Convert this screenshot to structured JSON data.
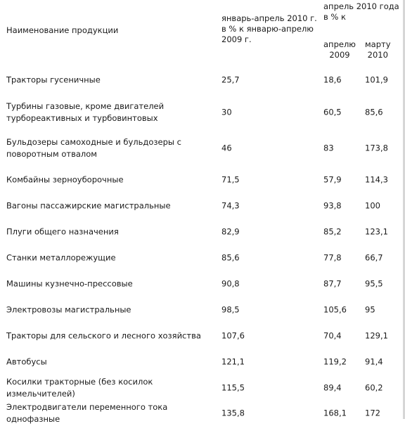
{
  "header": {
    "col_name": "Наименование продукции",
    "col_jan_apr": [
      "январь-апрель 2010 г.",
      "в % к январю-апрелю",
      "2009 г."
    ],
    "col_apr_group": [
      "апрель 2010 года",
      "в % к"
    ],
    "col_apr2009": [
      "апрелю",
      "2009"
    ],
    "col_mar2010": [
      "марту",
      "2010"
    ]
  },
  "rows": [
    {
      "name": [
        "Тракторы гусеничные"
      ],
      "v1": "25,7",
      "v2": "18,6",
      "v3": "101,9"
    },
    {
      "name": [
        "Турбины газовые, кроме двигателей",
        "турбореактивных и турбовинтовых"
      ],
      "v1": "30",
      "v2": "60,5",
      "v3": "85,6"
    },
    {
      "name": [
        "Бульдозеры самоходные и бульдозеры с",
        "поворотным отвалом"
      ],
      "v1": "46",
      "v2": "83",
      "v3": "173,8"
    },
    {
      "name": [
        "Комбайны зерноуборочные"
      ],
      "v1": "71,5",
      "v2": "57,9",
      "v3": "114,3"
    },
    {
      "name": [
        "Вагоны пассажирские магистральные"
      ],
      "v1": "74,3",
      "v2": "93,8",
      "v3": "100"
    },
    {
      "name": [
        "Плуги общего назначения"
      ],
      "v1": "82,9",
      "v2": "85,2",
      "v3": "123,1"
    },
    {
      "name": [
        "Станки металлорежущие"
      ],
      "v1": "85,6",
      "v2": "77,8",
      "v3": "66,7"
    },
    {
      "name": [
        "Машины кузнечно-прессовые"
      ],
      "v1": "90,8",
      "v2": "87,7",
      "v3": "95,5"
    },
    {
      "name": [
        "Электровозы магистральные"
      ],
      "v1": "98,5",
      "v2": "105,6",
      "v3": "95"
    },
    {
      "name": [
        "Тракторы для сельского и лесного хозяйства"
      ],
      "v1": "107,6",
      "v2": "70,4",
      "v3": "129,1"
    },
    {
      "name": [
        "Автобусы"
      ],
      "v1": "121,1",
      "v2": "119,2",
      "v3": "91,4"
    },
    {
      "name": [
        "Косилки тракторные (без косилок измельчителей)"
      ],
      "v1": "115,5",
      "v2": "89,4",
      "v3": "60,2"
    },
    {
      "name": [
        "Электродвигатели переменного тока однофазные"
      ],
      "v1": "135,8",
      "v2": "168,1",
      "v3": "172"
    }
  ]
}
